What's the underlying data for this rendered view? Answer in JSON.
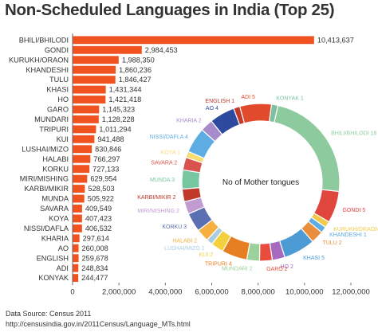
{
  "title": "Non-Scheduled Languages in India (Top 25)",
  "colors": {
    "bar": "#F0531F",
    "text": "#333333",
    "axis": "#666666"
  },
  "chart_data": [
    {
      "type": "bar",
      "orientation": "horizontal",
      "categories": [
        "BHILI/BHILODI",
        "GONDI",
        "KURUKH/ORAON",
        "KHANDESHI",
        "TULU",
        "KHASI",
        "HO",
        "GARO",
        "MUNDARI",
        "TRIPURI",
        "KUI",
        "LUSHAI/MIZO",
        "HALABI",
        "KORKU",
        "MIRI/MISHING",
        "KARBI/MIKIR",
        "MUNDA",
        "SAVARA",
        "KOYA",
        "NISSI/DAFLA",
        "KHARIA",
        "AO",
        "ENGLISH",
        "ADI",
        "KONYAK"
      ],
      "values": [
        10413637,
        2984453,
        1988350,
        1860236,
        1846427,
        1431344,
        1421418,
        1145323,
        1128228,
        1011294,
        941488,
        830846,
        766297,
        727133,
        629954,
        528503,
        505922,
        409549,
        407423,
        406532,
        297614,
        260008,
        259678,
        248834,
        244477
      ],
      "value_labels": [
        "10,413,637",
        "2,984,453",
        "1,988,350",
        "1,860,236",
        "1,846,427",
        "1,431,344",
        "1,421,418",
        "1,145,323",
        "1,128,228",
        "1,011,294",
        "941,488",
        "830,846",
        "766,297",
        "727,133",
        "629,954",
        "528,503",
        "505,922",
        "409,549",
        "407,423",
        "406,532",
        "297,614",
        "260,008",
        "259,678",
        "248,834",
        "244,477"
      ],
      "xlim": [
        0,
        12000000
      ],
      "x_ticks": [
        0,
        2000000,
        4000000,
        6000000,
        8000000,
        10000000,
        12000000
      ],
      "x_tick_labels": [
        "0",
        "2,000,000",
        "4,000,000",
        "6,000,000",
        "8,000,000",
        "10,000,000",
        "12,000,000"
      ]
    },
    {
      "type": "pie",
      "donut": true,
      "center_label": "No of Mother tongues",
      "slices": [
        {
          "label": "BHILI/BHILODI",
          "value": 18,
          "color": "#8DCB9E"
        },
        {
          "label": "GONDI",
          "value": 5,
          "color": "#E0453E"
        },
        {
          "label": "KURUKH/ORAON",
          "value": 1,
          "color": "#F2C94C"
        },
        {
          "label": "KHANDESHI",
          "value": 1,
          "color": "#5DADE2"
        },
        {
          "label": "TULU",
          "value": 2,
          "color": "#E98E3D"
        },
        {
          "label": "KHASI",
          "value": 5,
          "color": "#4C9BD4"
        },
        {
          "label": "HO",
          "value": 2,
          "color": "#A569BD"
        },
        {
          "label": "GARO",
          "value": 2,
          "color": "#E74C3C"
        },
        {
          "label": "MUNDARI",
          "value": 2,
          "color": "#9BD29B"
        },
        {
          "label": "TRIPURI",
          "value": 4,
          "color": "#E67E22"
        },
        {
          "label": "KUI",
          "value": 2,
          "color": "#F4D03F"
        },
        {
          "label": "LUSHAI/MIZO",
          "value": 1,
          "color": "#A9CCE3"
        },
        {
          "label": "HALABI",
          "value": 2,
          "color": "#F5B041"
        },
        {
          "label": "KORKU",
          "value": 3,
          "color": "#5B6FB3"
        },
        {
          "label": "MIRI/MISHING",
          "value": 2,
          "color": "#C39BD3"
        },
        {
          "label": "KARBI/MIKIR",
          "value": 2,
          "color": "#C0392B"
        },
        {
          "label": "MUNDA",
          "value": 3,
          "color": "#76C7A0"
        },
        {
          "label": "SAVARA",
          "value": 2,
          "color": "#D9534F"
        },
        {
          "label": "KOYA",
          "value": 1,
          "color": "#F7DC6F"
        },
        {
          "label": "NISSI/DAFLA",
          "value": 4,
          "color": "#5DADE2"
        },
        {
          "label": "KHARIA",
          "value": 2,
          "color": "#A88BC9"
        },
        {
          "label": "AO",
          "value": 4,
          "color": "#2E4A9E"
        },
        {
          "label": "ENGLISH",
          "value": 1,
          "color": "#C0392B"
        },
        {
          "label": "ADI",
          "value": 5,
          "color": "#E14A2B"
        },
        {
          "label": "KONYAK",
          "value": 1,
          "color": "#7FBF9F"
        }
      ]
    }
  ],
  "footer": {
    "source": "Data Source: Census 2011",
    "url": "http://censusindia.gov.in/2011Census/Language_MTs.html"
  }
}
